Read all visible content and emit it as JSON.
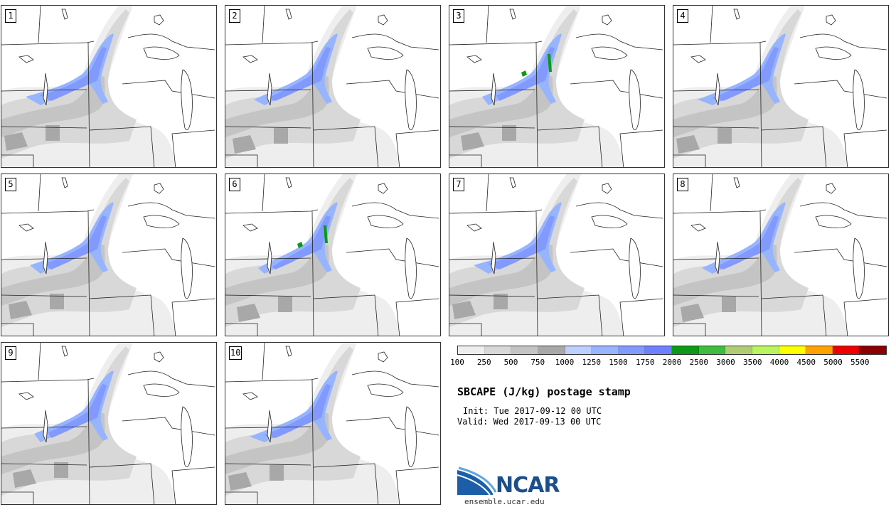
{
  "panels": [
    {
      "label": "1"
    },
    {
      "label": "2"
    },
    {
      "label": "3"
    },
    {
      "label": "4"
    },
    {
      "label": "5"
    },
    {
      "label": "6"
    },
    {
      "label": "7"
    },
    {
      "label": "8"
    },
    {
      "label": "9"
    },
    {
      "label": "10"
    }
  ],
  "colorbar": {
    "colors": [
      "#eeeeee",
      "#d8d8d8",
      "#c4c4c4",
      "#a8a8a8",
      "#bccfff",
      "#96b4ff",
      "#8299ff",
      "#6f80ff",
      "#0a9a14",
      "#3dbc3f",
      "#b1cd74",
      "#b9f55f",
      "#ffff00",
      "#ffa200",
      "#ee0000",
      "#8a0000"
    ],
    "tick_labels": [
      "100",
      "250",
      "500",
      "750",
      "1000",
      "1250",
      "1500",
      "1750",
      "2000",
      "2500",
      "3000",
      "3500",
      "4000",
      "4500",
      "5000",
      "5500"
    ]
  },
  "title": "SBCAPE (J/kg) postage stamp",
  "init_line": "Init: Tue 2017-09-12 00 UTC",
  "valid_line": "Valid: Wed 2017-09-13 00 UTC",
  "logo_text": "NCAR",
  "site": "ensemble.ucar.edu"
}
